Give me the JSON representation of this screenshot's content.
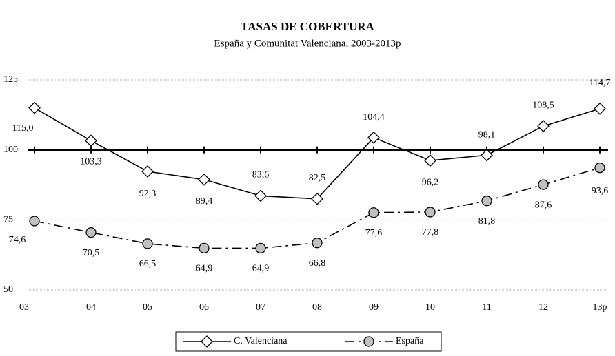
{
  "chart_data": {
    "type": "line",
    "title": "TASAS DE COBERTURA",
    "subtitle": "España y Comunitat Valenciana, 2003-2013p",
    "categories": [
      "03",
      "04",
      "05",
      "06",
      "07",
      "08",
      "09",
      "10",
      "11",
      "12",
      "13p"
    ],
    "series": [
      {
        "name": "C. Valenciana",
        "color": "#000000",
        "marker": "diamond",
        "marker_fill": "#ffffff",
        "dash": "solid",
        "values": [
          115.0,
          103.3,
          92.3,
          89.4,
          83.6,
          82.5,
          104.4,
          96.2,
          98.1,
          108.5,
          114.7
        ],
        "value_labels": [
          "115,0",
          "103,3",
          "92,3",
          "89,4",
          "83,6",
          "82,5",
          "104,4",
          "96,2",
          "98,1",
          "108,5",
          "114,7"
        ]
      },
      {
        "name": "España",
        "color": "#000000",
        "marker": "circle",
        "marker_fill": "#c0c0c0",
        "dash": "dashdot",
        "values": [
          74.6,
          70.5,
          66.5,
          64.9,
          64.9,
          66.8,
          77.6,
          77.8,
          81.8,
          87.6,
          93.6
        ],
        "value_labels": [
          "74,6",
          "70,5",
          "66,5",
          "64,9",
          "64,9",
          "66,8",
          "77,6",
          "77,8",
          "81,8",
          "87,6",
          "93,6"
        ]
      }
    ],
    "ylim": [
      50,
      125
    ],
    "yticks": [
      50,
      75,
      100,
      125
    ],
    "grid": true,
    "x_axis_at": 100,
    "legend": "bottom"
  }
}
